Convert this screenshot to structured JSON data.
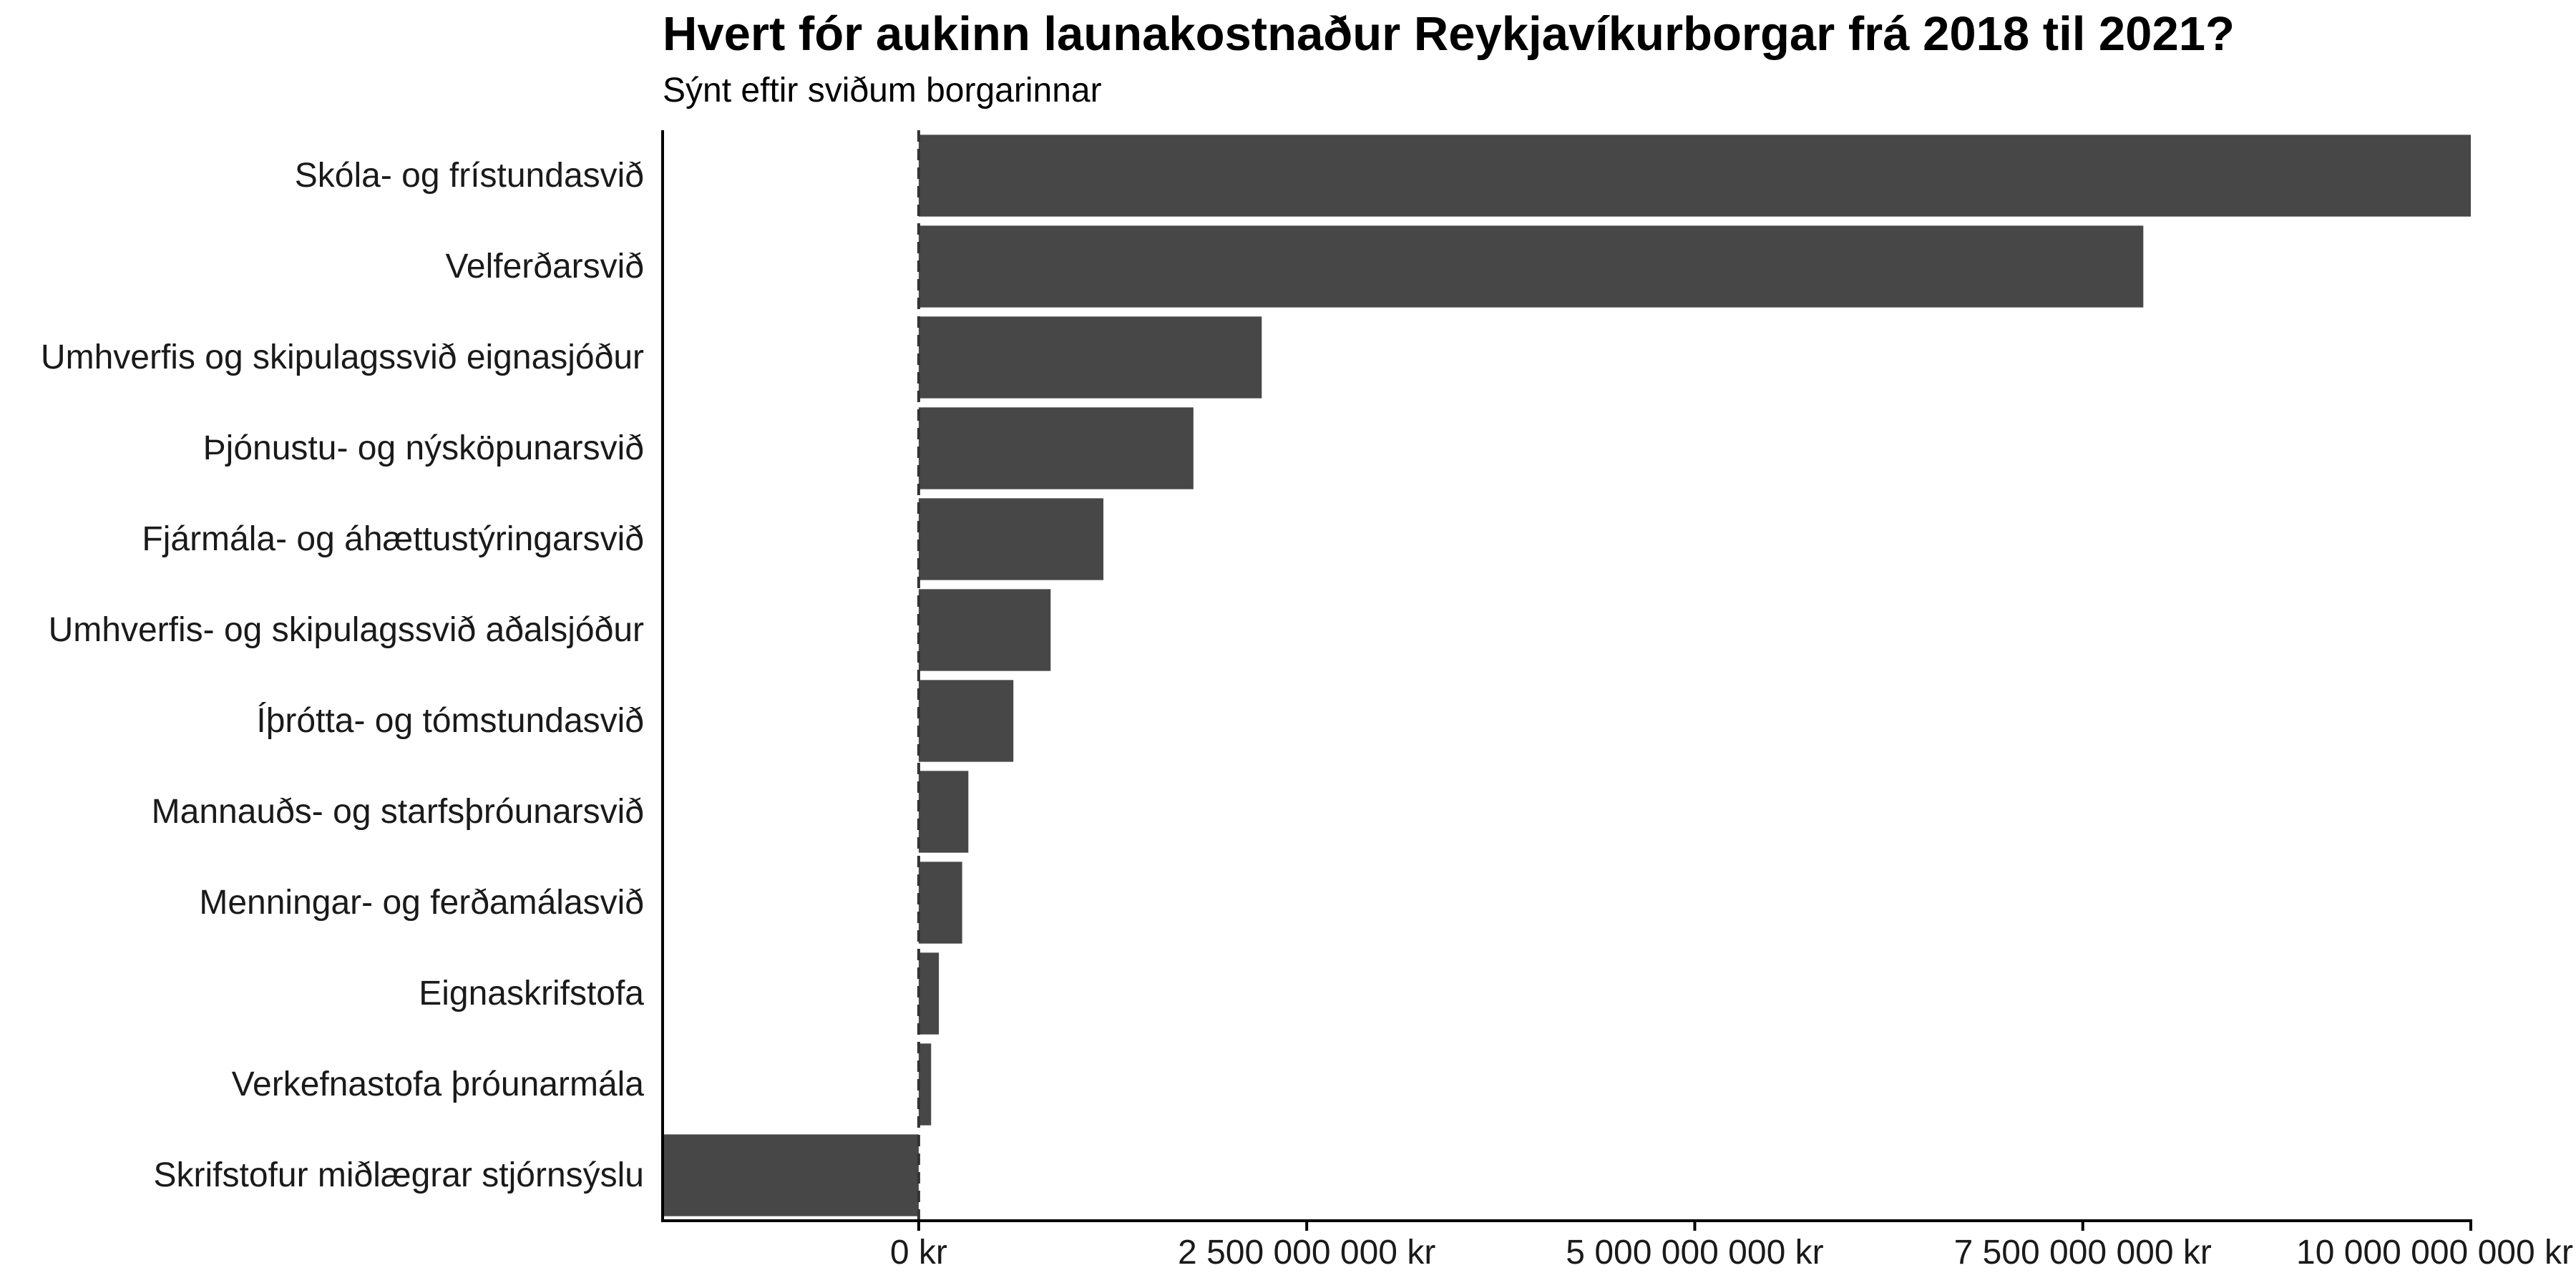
{
  "chart_data": {
    "type": "bar",
    "orientation": "horizontal",
    "title": "Hvert fór aukinn launakostnaður Reykjavíkurborgar frá 2018 til 2021?",
    "subtitle": "Sýnt eftir sviðum borgarinnar",
    "xlabel": "",
    "ylabel": "",
    "xlim": [
      -1650000000,
      10000000000
    ],
    "bar_color": "#474747",
    "reference_line": {
      "value": 0,
      "style": "dashed"
    },
    "grid": false,
    "legend": "none",
    "categories": [
      "Skóla- og frístundasvið",
      "Velferðarsvið",
      "Umhverfis og skipulagssvið eignasjóður",
      "Þjónustu- og nýsköpunarsvið",
      "Fjármála- og áhættustýringarsvið",
      "Umhverfis- og skipulagssvið aðalsjóður",
      "Íþrótta- og tómstundasvið",
      "Mannauðs- og starfsþróunarsvið",
      "Menningar- og ferðamálasvið",
      "Eignaskrifstofa",
      "Verkefnastofa þróunarmála",
      "Skrifstofur miðlægrar stjórnsýslu"
    ],
    "values": [
      10000000000,
      7890000000,
      2210000000,
      1770000000,
      1190000000,
      850000000,
      610000000,
      320000000,
      280000000,
      130000000,
      80000000,
      -1650000000
    ],
    "x_ticks": [
      {
        "value": 0,
        "label": "0 kr"
      },
      {
        "value": 2500000000,
        "label": "2 500 000 000 kr"
      },
      {
        "value": 5000000000,
        "label": "5 000 000 000 kr"
      },
      {
        "value": 7500000000,
        "label": "7 500 000 000 kr"
      },
      {
        "value": 10000000000,
        "label": "10 000 000 000 kr"
      }
    ]
  }
}
